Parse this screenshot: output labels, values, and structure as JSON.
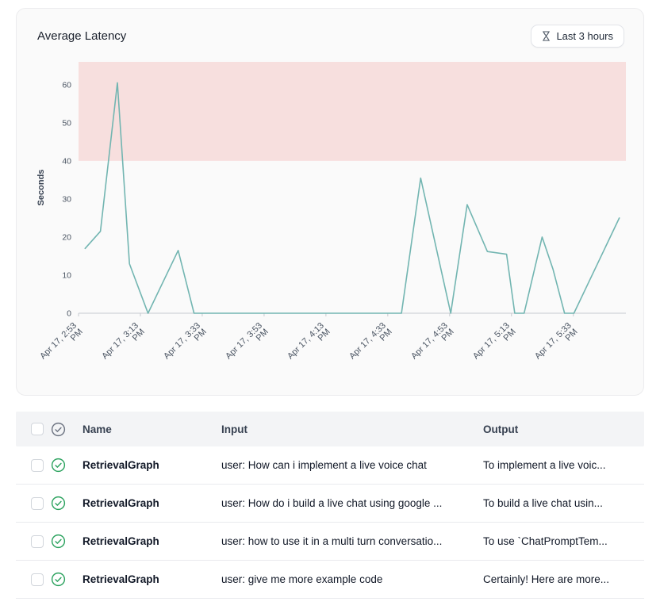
{
  "card": {
    "title": "Average Latency",
    "time_range_label": "Last 3 hours"
  },
  "colors": {
    "success_green": "#2ba25e",
    "header_icon_gray": "#6b7280",
    "alert_band_pink": "#f7dfde",
    "line_teal": "#72b5b1"
  },
  "chart_data": {
    "type": "line",
    "title": "Average Latency",
    "xlabel": "",
    "ylabel": "Seconds",
    "ylim": [
      0,
      66
    ],
    "yticks": [
      0,
      10,
      20,
      30,
      40,
      50,
      60
    ],
    "grid": false,
    "threshold_band": {
      "from": 40,
      "to": 66,
      "color": "#f7dfde"
    },
    "x_ticks": [
      {
        "f": 0.0,
        "label": "Apr 17, 2:53 PM"
      },
      {
        "f": 0.113,
        "label": "Apr 17, 3:13 PM"
      },
      {
        "f": 0.226,
        "label": "Apr 17, 3:33 PM"
      },
      {
        "f": 0.339,
        "label": "Apr 17, 3:53 PM"
      },
      {
        "f": 0.452,
        "label": "Apr 17, 4:13 PM"
      },
      {
        "f": 0.565,
        "label": "Apr 17, 4:33 PM"
      },
      {
        "f": 0.678,
        "label": "Apr 17, 4:53 PM"
      },
      {
        "f": 0.791,
        "label": "Apr 17, 5:13 PM"
      },
      {
        "f": 0.904,
        "label": "Apr 17, 5:33 PM"
      }
    ],
    "series": [
      {
        "name": "Average Latency (s)",
        "color": "#72b5b1",
        "points": [
          {
            "x": 0.012,
            "y": 17
          },
          {
            "x": 0.04,
            "y": 21.5
          },
          {
            "x": 0.071,
            "y": 60.5
          },
          {
            "x": 0.093,
            "y": 13
          },
          {
            "x": 0.127,
            "y": 0
          },
          {
            "x": 0.182,
            "y": 16.5
          },
          {
            "x": 0.211,
            "y": 0
          },
          {
            "x": 0.59,
            "y": 0
          },
          {
            "x": 0.625,
            "y": 35.5
          },
          {
            "x": 0.68,
            "y": 0
          },
          {
            "x": 0.71,
            "y": 28.5
          },
          {
            "x": 0.747,
            "y": 16.2
          },
          {
            "x": 0.782,
            "y": 15.5
          },
          {
            "x": 0.797,
            "y": 0
          },
          {
            "x": 0.814,
            "y": 0
          },
          {
            "x": 0.847,
            "y": 20
          },
          {
            "x": 0.867,
            "y": 11.5
          },
          {
            "x": 0.888,
            "y": 0
          },
          {
            "x": 0.905,
            "y": 0
          },
          {
            "x": 0.988,
            "y": 25
          }
        ]
      }
    ]
  },
  "table": {
    "headers": {
      "name": "Name",
      "input": "Input",
      "output": "Output"
    },
    "rows": [
      {
        "status": "success",
        "name": "RetrievalGraph",
        "input": "user: How can i implement a live voice chat",
        "output": "To implement a live voic..."
      },
      {
        "status": "success",
        "name": "RetrievalGraph",
        "input": "user: How do i build a live chat using google ...",
        "output": "To build a live chat usin..."
      },
      {
        "status": "success",
        "name": "RetrievalGraph",
        "input": "user: how to use it in a multi turn conversatio...",
        "output": "To use `ChatPromptTem..."
      },
      {
        "status": "success",
        "name": "RetrievalGraph",
        "input": "user: give me more example code",
        "output": "Certainly! Here are more..."
      }
    ]
  }
}
